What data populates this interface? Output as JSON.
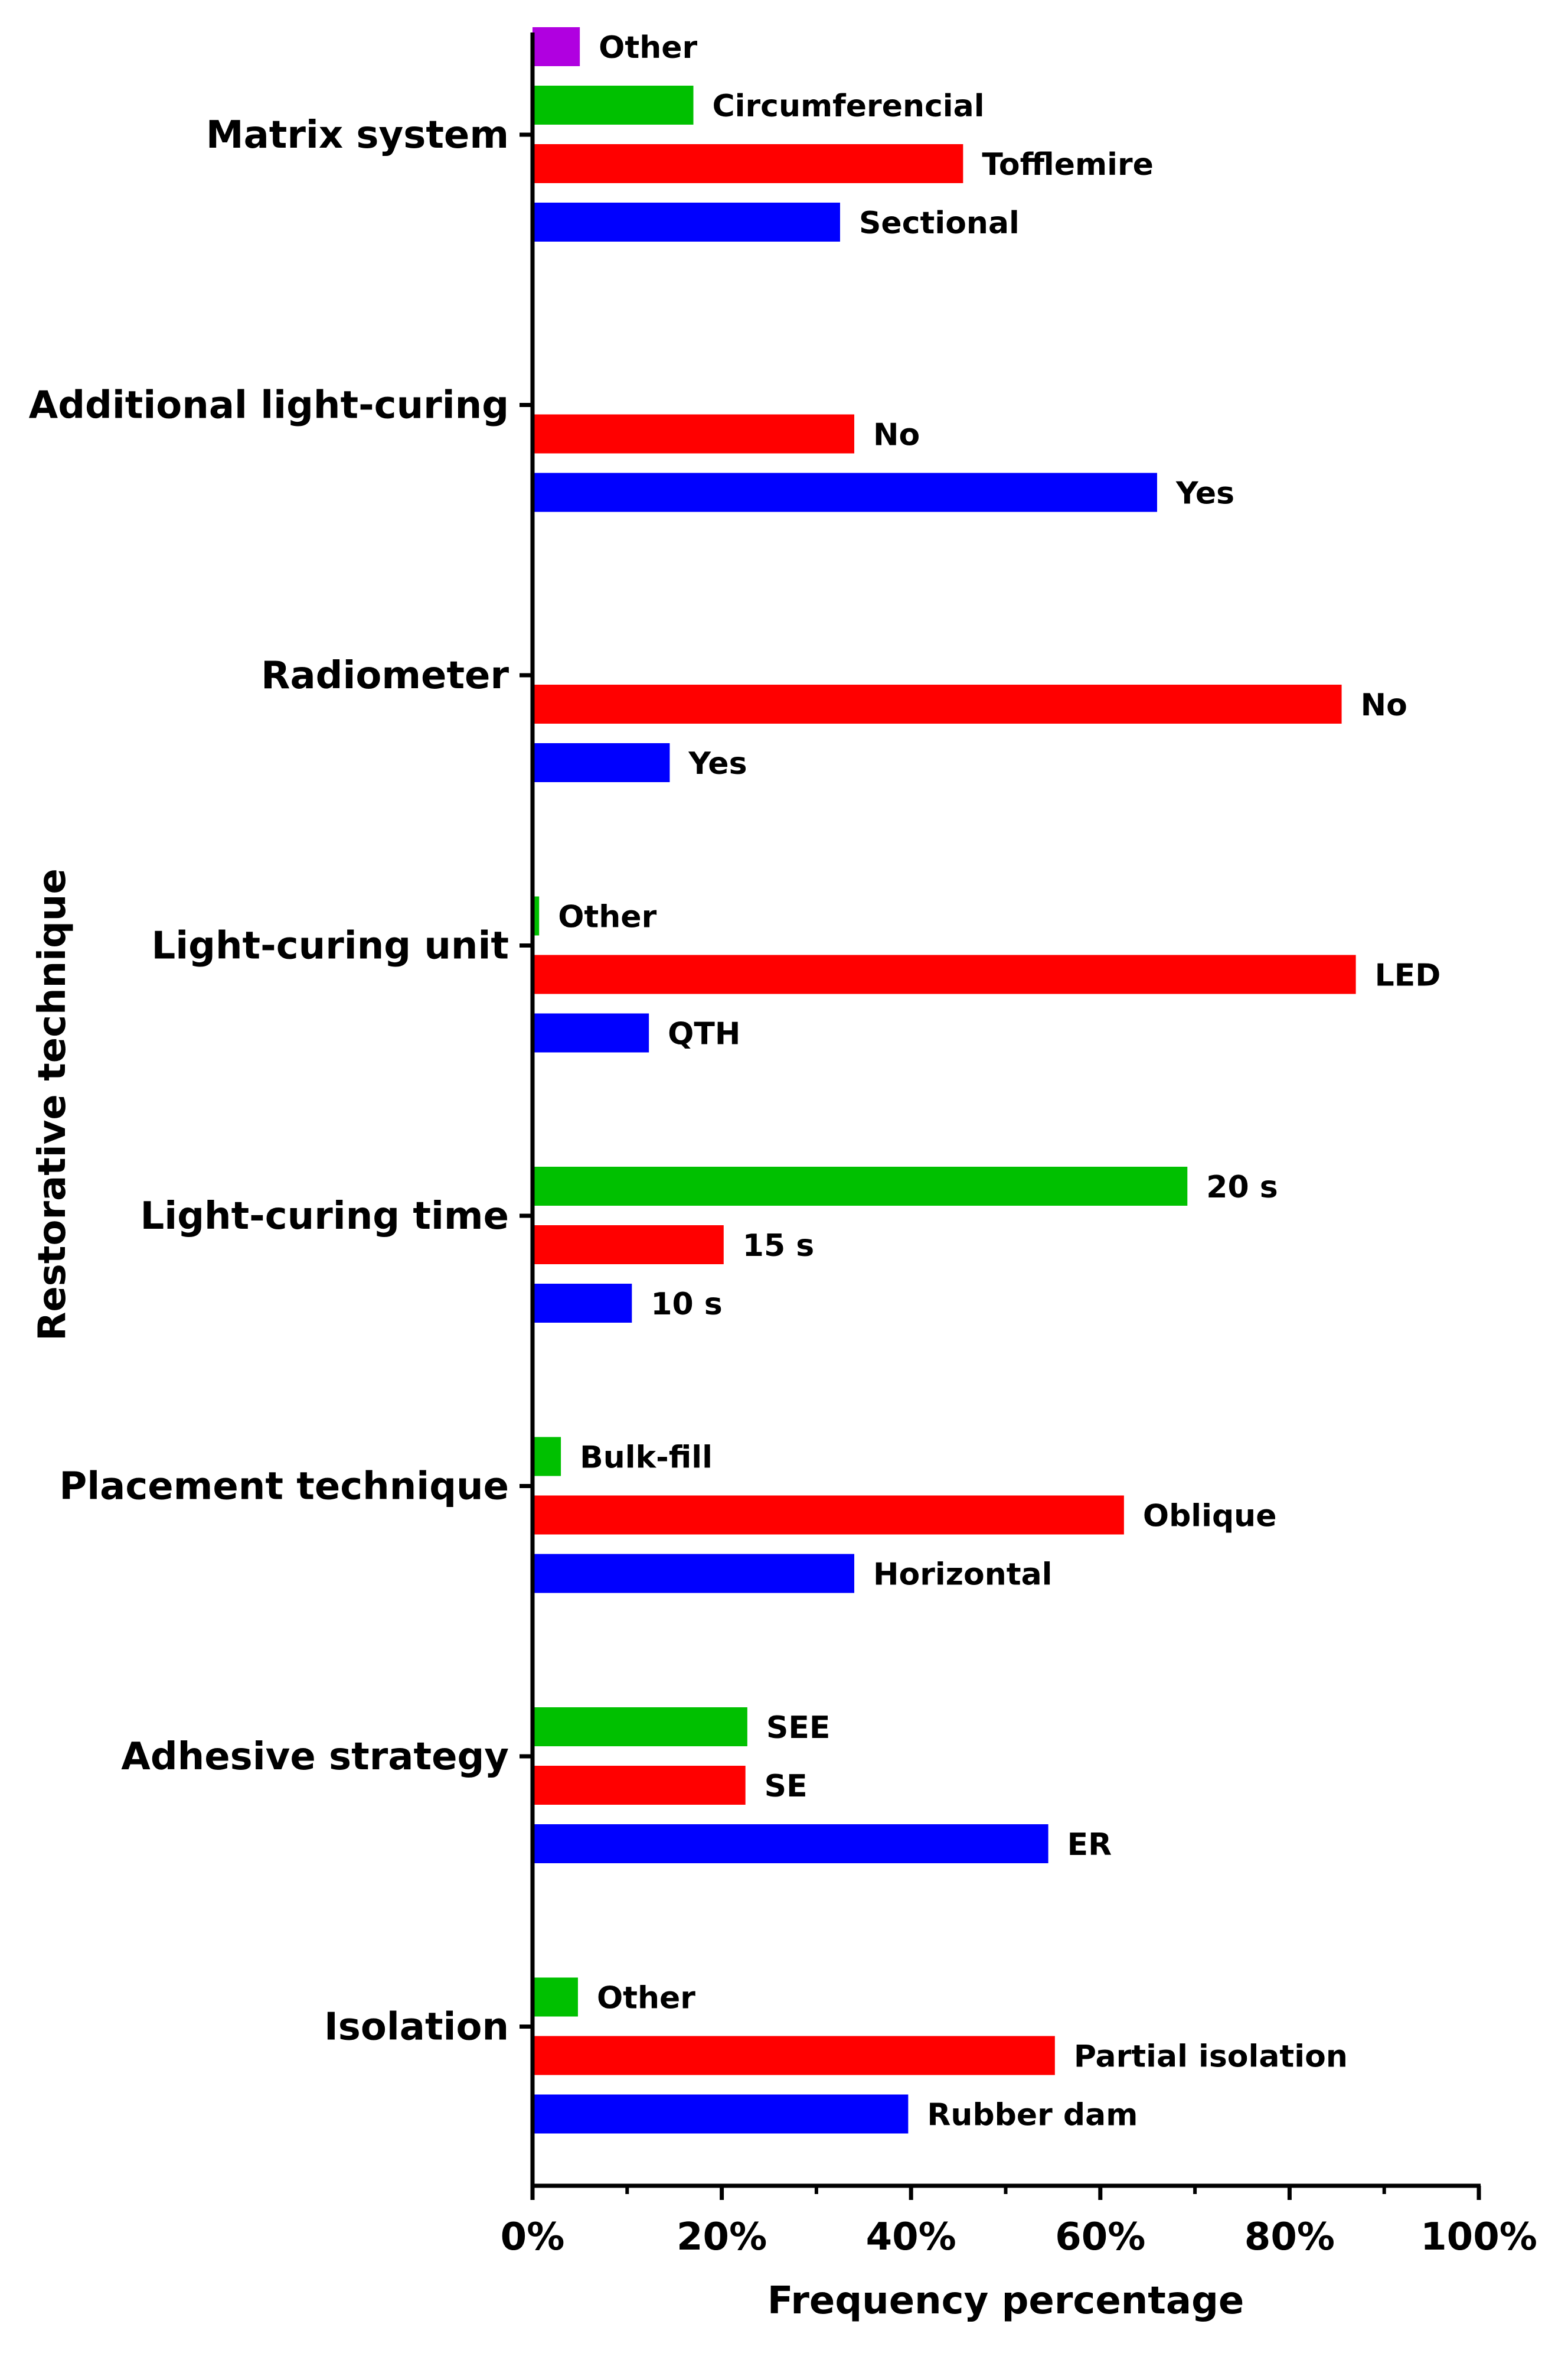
{
  "chart_data": {
    "type": "bar",
    "orientation": "horizontal",
    "xlabel": "Frequency percentage",
    "ylabel": "Restorative technique",
    "xlim": [
      0,
      100
    ],
    "xticks": [
      0,
      20,
      40,
      60,
      80,
      100
    ],
    "xtick_labels": [
      "0%",
      "20%",
      "40%",
      "60%",
      "80%",
      "100%"
    ],
    "grid": false,
    "colors": {
      "blue": "#0000ff",
      "red": "#ff0000",
      "green": "#00c000",
      "purple": "#b000e0"
    },
    "groups": [
      {
        "name": "Matrix system",
        "bars": [
          {
            "label": "Sectional",
            "value": 32.5,
            "color": "blue"
          },
          {
            "label": "Tofflemire",
            "value": 45.5,
            "color": "red"
          },
          {
            "label": "Circumferencial",
            "value": 17,
            "color": "green"
          },
          {
            "label": "Other",
            "value": 5,
            "color": "purple"
          }
        ]
      },
      {
        "name": "Additional light-curing",
        "bars": [
          {
            "label": "Yes",
            "value": 66,
            "color": "blue"
          },
          {
            "label": "No",
            "value": 34,
            "color": "red"
          }
        ]
      },
      {
        "name": "Radiometer",
        "bars": [
          {
            "label": "Yes",
            "value": 14.5,
            "color": "blue"
          },
          {
            "label": "No",
            "value": 85.5,
            "color": "red"
          }
        ]
      },
      {
        "name": "Light-curing unit",
        "bars": [
          {
            "label": "QTH",
            "value": 12.3,
            "color": "blue"
          },
          {
            "label": "LED",
            "value": 87,
            "color": "red"
          },
          {
            "label": "Other",
            "value": 0.7,
            "color": "green"
          }
        ]
      },
      {
        "name": "Light-curing time",
        "bars": [
          {
            "label": "10 s",
            "value": 10.5,
            "color": "blue"
          },
          {
            "label": "15 s",
            "value": 20.2,
            "color": "red"
          },
          {
            "label": "20 s",
            "value": 69.2,
            "color": "green"
          }
        ]
      },
      {
        "name": "Placement technique",
        "bars": [
          {
            "label": "Horizontal",
            "value": 34,
            "color": "blue"
          },
          {
            "label": "Oblique",
            "value": 62.5,
            "color": "red"
          },
          {
            "label": "Bulk-fill",
            "value": 3,
            "color": "green"
          }
        ]
      },
      {
        "name": "Adhesive strategy",
        "bars": [
          {
            "label": "ER",
            "value": 54.5,
            "color": "blue"
          },
          {
            "label": "SE",
            "value": 22.5,
            "color": "red"
          },
          {
            "label": "SEE",
            "value": 22.7,
            "color": "green"
          }
        ]
      },
      {
        "name": "Isolation",
        "bars": [
          {
            "label": "Rubber dam",
            "value": 39.7,
            "color": "blue"
          },
          {
            "label": "Partial isolation",
            "value": 55.2,
            "color": "red"
          },
          {
            "label": "Other",
            "value": 4.8,
            "color": "green"
          }
        ]
      }
    ]
  }
}
